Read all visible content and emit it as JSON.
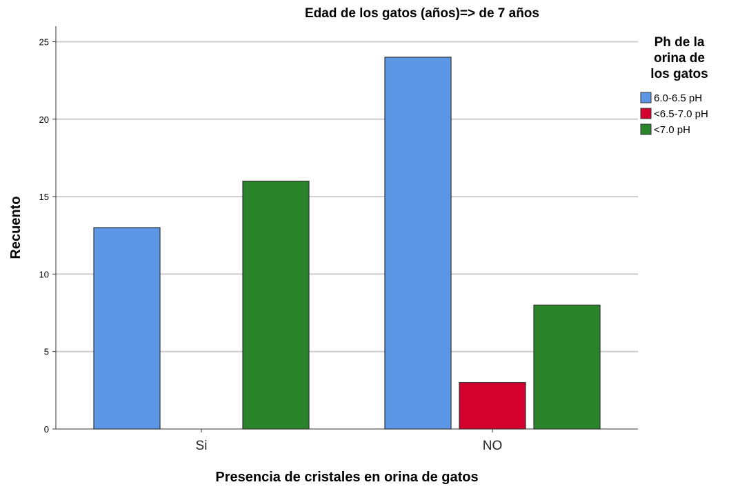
{
  "chart_data": {
    "type": "bar",
    "title": "Edad de los gatos (años)=> de 7 años",
    "xlabel": "Presencia de cristales en orina de gatos",
    "ylabel": "Recuento",
    "categories": [
      "Si",
      "NO"
    ],
    "series": [
      {
        "name": "6.0-6.5 pH",
        "color": "#5b97e5",
        "values": [
          13,
          24
        ]
      },
      {
        "name": "<6.5-7.0 pH",
        "color": "#d4002e",
        "values": [
          0,
          3
        ]
      },
      {
        "name": "<7.0 pH",
        "color": "#2a8429",
        "values": [
          16,
          8
        ]
      }
    ],
    "ylim": [
      0,
      26
    ],
    "yticks": [
      "0",
      "5",
      "10",
      "15",
      "20",
      "25"
    ],
    "grid": true,
    "legend": {
      "title_lines": [
        "Ph de la",
        "orina de",
        "los gatos"
      ],
      "position": "top-right"
    }
  }
}
